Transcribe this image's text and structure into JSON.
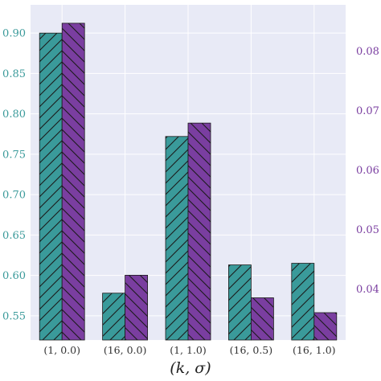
{
  "chart_data": {
    "type": "bar",
    "title": "",
    "xlabel": "(k, σ)",
    "ylabel": "",
    "categories": [
      "(1, 0.0)",
      "(16, 0.0)",
      "(1, 1.0)",
      "(16, 0.5)",
      "(16, 1.0)"
    ],
    "series": [
      {
        "axis": "left",
        "color": "#3a9a9a",
        "hatch": "forward-diagonal",
        "values": [
          0.9,
          0.578,
          0.772,
          0.613,
          0.615
        ]
      },
      {
        "axis": "right",
        "color": "#7a3ea0",
        "hatch": "back-diagonal",
        "values": [
          0.0847,
          0.0423,
          0.0679,
          0.0385,
          0.036
        ]
      }
    ],
    "left_axis": {
      "ylim": [
        0.52,
        0.935
      ],
      "ticks": [
        "0.55",
        "0.60",
        "0.65",
        "0.70",
        "0.75",
        "0.80",
        "0.85",
        "0.90"
      ],
      "color": "#3a9a9a"
    },
    "right_axis": {
      "ylim": [
        0.0314,
        0.0878
      ],
      "ticks": [
        "0.04",
        "0.05",
        "0.06",
        "0.07",
        "0.08"
      ],
      "color": "#7a3ea0"
    },
    "grid": true,
    "background": "#e8eaf6"
  }
}
